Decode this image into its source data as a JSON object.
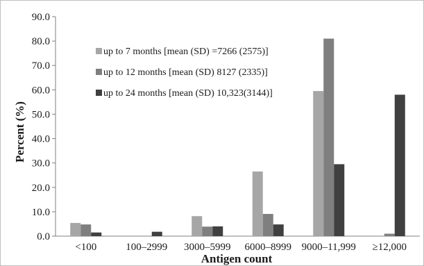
{
  "chart_data": {
    "type": "bar",
    "xlabel": "Antigen count",
    "ylabel": "Percent (%)",
    "ylim": [
      0,
      90
    ],
    "ytick_step": 10,
    "ytick_labels": [
      "0.0",
      "10.0",
      "20.0",
      "30.0",
      "40.0",
      "50.0",
      "60.0",
      "70.0",
      "80.0",
      "90.0"
    ],
    "categories": [
      "<100",
      "100–2999",
      "3000–5999",
      "6000–8999",
      "9000–11,999",
      "≥12,000"
    ],
    "grid": false,
    "legend_position": "top-left",
    "series": [
      {
        "name": "up to 7 months [mean (SD) =7266 (2575)]",
        "color": "#a6a6a6",
        "values": [
          5.4,
          0.0,
          8.2,
          26.5,
          59.5,
          0.0
        ]
      },
      {
        "name": "up to 12 months [mean (SD) 8127 (2335)]",
        "color": "#7f7f7f",
        "values": [
          4.8,
          0.0,
          3.9,
          9.1,
          81.0,
          1.0
        ]
      },
      {
        "name": "up to 24 months [mean (SD) 10,323(3144)]",
        "color": "#404040",
        "values": [
          1.5,
          1.8,
          4.0,
          4.8,
          29.5,
          58.0
        ]
      }
    ]
  }
}
